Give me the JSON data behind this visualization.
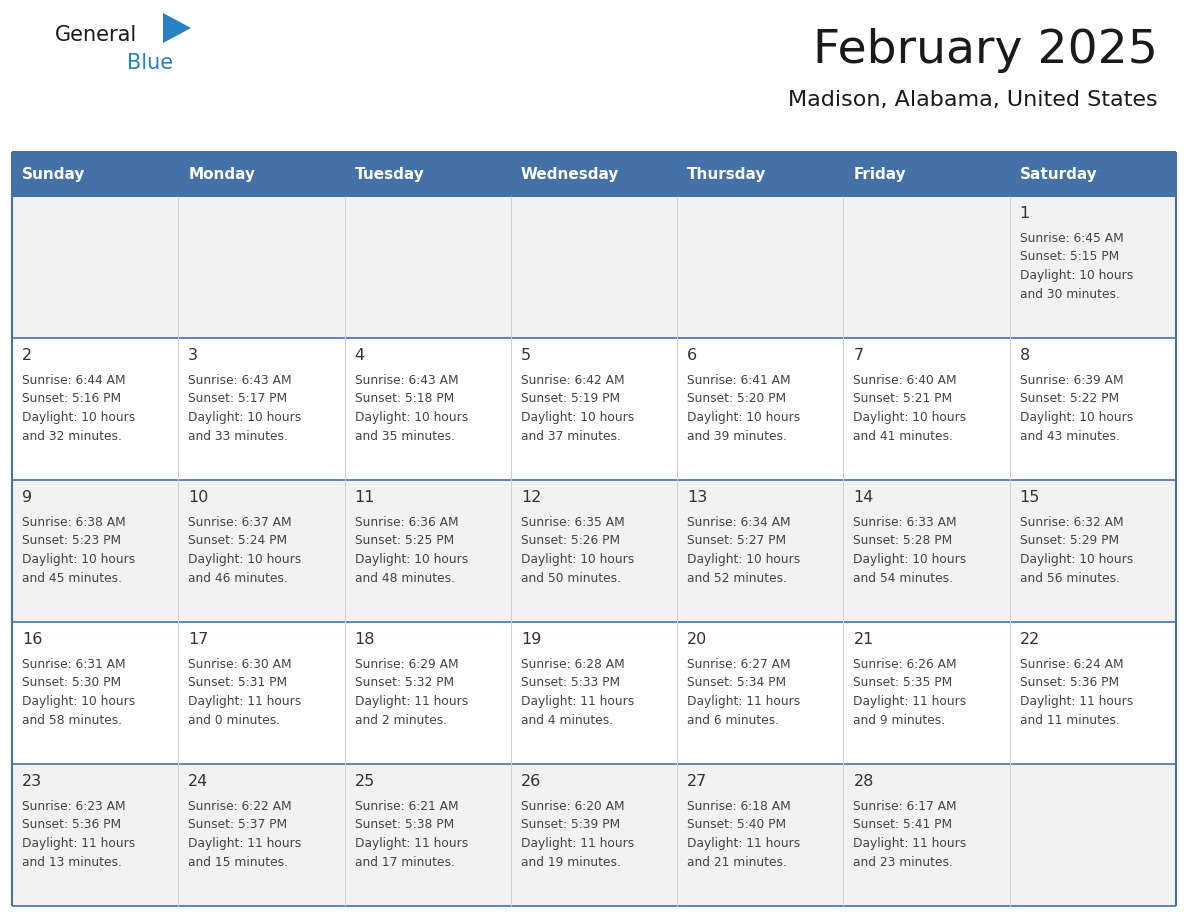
{
  "title": "February 2025",
  "subtitle": "Madison, Alabama, United States",
  "header_bg": "#4472a8",
  "header_text_color": "#ffffff",
  "cell_bg_odd": "#f2f2f2",
  "cell_bg_even": "#ffffff",
  "row_border_color": "#4472a8",
  "col_border_color": "#d0d0d0",
  "day_headers": [
    "Sunday",
    "Monday",
    "Tuesday",
    "Wednesday",
    "Thursday",
    "Friday",
    "Saturday"
  ],
  "title_color": "#1a1a1a",
  "subtitle_color": "#1a1a1a",
  "date_color": "#333333",
  "info_color": "#444444",
  "logo_general_color": "#1a1a1a",
  "logo_blue_color": "#2980c4",
  "calendar_data": [
    [
      {
        "day": "",
        "sunrise": "",
        "sunset": "",
        "daylight_h": "",
        "daylight_m": ""
      },
      {
        "day": "",
        "sunrise": "",
        "sunset": "",
        "daylight_h": "",
        "daylight_m": ""
      },
      {
        "day": "",
        "sunrise": "",
        "sunset": "",
        "daylight_h": "",
        "daylight_m": ""
      },
      {
        "day": "",
        "sunrise": "",
        "sunset": "",
        "daylight_h": "",
        "daylight_m": ""
      },
      {
        "day": "",
        "sunrise": "",
        "sunset": "",
        "daylight_h": "",
        "daylight_m": ""
      },
      {
        "day": "",
        "sunrise": "",
        "sunset": "",
        "daylight_h": "",
        "daylight_m": ""
      },
      {
        "day": "1",
        "sunrise": "6:45 AM",
        "sunset": "5:15 PM",
        "daylight_h": "10 hours",
        "daylight_m": "and 30 minutes."
      }
    ],
    [
      {
        "day": "2",
        "sunrise": "6:44 AM",
        "sunset": "5:16 PM",
        "daylight_h": "10 hours",
        "daylight_m": "and 32 minutes."
      },
      {
        "day": "3",
        "sunrise": "6:43 AM",
        "sunset": "5:17 PM",
        "daylight_h": "10 hours",
        "daylight_m": "and 33 minutes."
      },
      {
        "day": "4",
        "sunrise": "6:43 AM",
        "sunset": "5:18 PM",
        "daylight_h": "10 hours",
        "daylight_m": "and 35 minutes."
      },
      {
        "day": "5",
        "sunrise": "6:42 AM",
        "sunset": "5:19 PM",
        "daylight_h": "10 hours",
        "daylight_m": "and 37 minutes."
      },
      {
        "day": "6",
        "sunrise": "6:41 AM",
        "sunset": "5:20 PM",
        "daylight_h": "10 hours",
        "daylight_m": "and 39 minutes."
      },
      {
        "day": "7",
        "sunrise": "6:40 AM",
        "sunset": "5:21 PM",
        "daylight_h": "10 hours",
        "daylight_m": "and 41 minutes."
      },
      {
        "day": "8",
        "sunrise": "6:39 AM",
        "sunset": "5:22 PM",
        "daylight_h": "10 hours",
        "daylight_m": "and 43 minutes."
      }
    ],
    [
      {
        "day": "9",
        "sunrise": "6:38 AM",
        "sunset": "5:23 PM",
        "daylight_h": "10 hours",
        "daylight_m": "and 45 minutes."
      },
      {
        "day": "10",
        "sunrise": "6:37 AM",
        "sunset": "5:24 PM",
        "daylight_h": "10 hours",
        "daylight_m": "and 46 minutes."
      },
      {
        "day": "11",
        "sunrise": "6:36 AM",
        "sunset": "5:25 PM",
        "daylight_h": "10 hours",
        "daylight_m": "and 48 minutes."
      },
      {
        "day": "12",
        "sunrise": "6:35 AM",
        "sunset": "5:26 PM",
        "daylight_h": "10 hours",
        "daylight_m": "and 50 minutes."
      },
      {
        "day": "13",
        "sunrise": "6:34 AM",
        "sunset": "5:27 PM",
        "daylight_h": "10 hours",
        "daylight_m": "and 52 minutes."
      },
      {
        "day": "14",
        "sunrise": "6:33 AM",
        "sunset": "5:28 PM",
        "daylight_h": "10 hours",
        "daylight_m": "and 54 minutes."
      },
      {
        "day": "15",
        "sunrise": "6:32 AM",
        "sunset": "5:29 PM",
        "daylight_h": "10 hours",
        "daylight_m": "and 56 minutes."
      }
    ],
    [
      {
        "day": "16",
        "sunrise": "6:31 AM",
        "sunset": "5:30 PM",
        "daylight_h": "10 hours",
        "daylight_m": "and 58 minutes."
      },
      {
        "day": "17",
        "sunrise": "6:30 AM",
        "sunset": "5:31 PM",
        "daylight_h": "11 hours",
        "daylight_m": "and 0 minutes."
      },
      {
        "day": "18",
        "sunrise": "6:29 AM",
        "sunset": "5:32 PM",
        "daylight_h": "11 hours",
        "daylight_m": "and 2 minutes."
      },
      {
        "day": "19",
        "sunrise": "6:28 AM",
        "sunset": "5:33 PM",
        "daylight_h": "11 hours",
        "daylight_m": "and 4 minutes."
      },
      {
        "day": "20",
        "sunrise": "6:27 AM",
        "sunset": "5:34 PM",
        "daylight_h": "11 hours",
        "daylight_m": "and 6 minutes."
      },
      {
        "day": "21",
        "sunrise": "6:26 AM",
        "sunset": "5:35 PM",
        "daylight_h": "11 hours",
        "daylight_m": "and 9 minutes."
      },
      {
        "day": "22",
        "sunrise": "6:24 AM",
        "sunset": "5:36 PM",
        "daylight_h": "11 hours",
        "daylight_m": "and 11 minutes."
      }
    ],
    [
      {
        "day": "23",
        "sunrise": "6:23 AM",
        "sunset": "5:36 PM",
        "daylight_h": "11 hours",
        "daylight_m": "and 13 minutes."
      },
      {
        "day": "24",
        "sunrise": "6:22 AM",
        "sunset": "5:37 PM",
        "daylight_h": "11 hours",
        "daylight_m": "and 15 minutes."
      },
      {
        "day": "25",
        "sunrise": "6:21 AM",
        "sunset": "5:38 PM",
        "daylight_h": "11 hours",
        "daylight_m": "and 17 minutes."
      },
      {
        "day": "26",
        "sunrise": "6:20 AM",
        "sunset": "5:39 PM",
        "daylight_h": "11 hours",
        "daylight_m": "and 19 minutes."
      },
      {
        "day": "27",
        "sunrise": "6:18 AM",
        "sunset": "5:40 PM",
        "daylight_h": "11 hours",
        "daylight_m": "and 21 minutes."
      },
      {
        "day": "28",
        "sunrise": "6:17 AM",
        "sunset": "5:41 PM",
        "daylight_h": "11 hours",
        "daylight_m": "and 23 minutes."
      },
      {
        "day": "",
        "sunrise": "",
        "sunset": "",
        "daylight_h": "",
        "daylight_m": ""
      }
    ]
  ]
}
